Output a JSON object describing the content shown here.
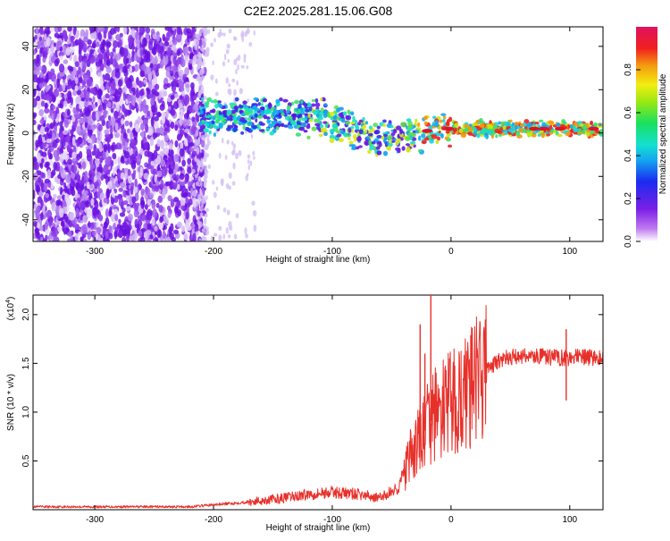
{
  "title": "C2E2.2025.281.15.06.G08",
  "colors": {
    "snr_line": "#e8302a",
    "spectrogram_low": "#8a2be2",
    "spectrogram_high": "#e0112f"
  },
  "chart_data": [
    {
      "type": "heatmap",
      "name": "spectrogram",
      "xlabel": "Height of straight line (km)",
      "ylabel": "Frequency (Hz)",
      "xlim": [
        -352,
        128
      ],
      "ylim": [
        -50,
        49
      ],
      "xticks": [
        -300,
        -200,
        -100,
        0,
        100
      ],
      "xtick_labels": [
        "-300",
        "-200",
        "-100",
        "0",
        "100"
      ],
      "yticks": [
        40,
        20,
        0,
        -20,
        -40
      ],
      "ytick_labels": [
        "40",
        "20",
        "0",
        "-20",
        "-40"
      ],
      "ridge_center_hz": [
        {
          "x": -210,
          "y": 8
        },
        {
          "x": -170,
          "y": 8
        },
        {
          "x": -140,
          "y": 7
        },
        {
          "x": -110,
          "y": 7
        },
        {
          "x": -90,
          "y": 4
        },
        {
          "x": -75,
          "y": 0
        },
        {
          "x": -60,
          "y": -3
        },
        {
          "x": -45,
          "y": -2
        },
        {
          "x": -30,
          "y": 0
        },
        {
          "x": -10,
          "y": 1
        },
        {
          "x": 0,
          "y": 2
        },
        {
          "x": 128,
          "y": 2
        }
      ],
      "colorbar": {
        "label": "Normalized spectral amplitude",
        "range": [
          0,
          1
        ],
        "ticks": [
          0.0,
          0.2,
          0.4,
          0.6,
          0.8
        ],
        "tick_labels": [
          "0.0",
          "0.2",
          "0.4",
          "0.6",
          "0.8"
        ]
      }
    },
    {
      "type": "line",
      "name": "snr",
      "xlabel": "Height of straight line (km)",
      "ylabel": "SNR (10 * v/v)",
      "y_multiplier": "(x10",
      "y_multiplier_exp": "4",
      "xlim": [
        -352,
        128
      ],
      "ylim": [
        0,
        2.2
      ],
      "xticks": [
        -300,
        -200,
        -100,
        0,
        100
      ],
      "xtick_labels": [
        "-300",
        "-200",
        "-100",
        "0",
        "100"
      ],
      "yticks": [
        0.5,
        1.0,
        1.5,
        2.0
      ],
      "ytick_labels": [
        "0.5",
        "1.0",
        "1.5",
        "2.0"
      ],
      "profile": [
        {
          "x": -352,
          "y": 0.03
        },
        {
          "x": -220,
          "y": 0.03
        },
        {
          "x": -200,
          "y": 0.05
        },
        {
          "x": -170,
          "y": 0.08
        },
        {
          "x": -140,
          "y": 0.12
        },
        {
          "x": -120,
          "y": 0.16
        },
        {
          "x": -100,
          "y": 0.18
        },
        {
          "x": -80,
          "y": 0.16
        },
        {
          "x": -60,
          "y": 0.12
        },
        {
          "x": -45,
          "y": 0.22
        },
        {
          "x": -35,
          "y": 0.5
        },
        {
          "x": -25,
          "y": 0.75
        },
        {
          "x": -15,
          "y": 0.95
        },
        {
          "x": -5,
          "y": 1.05
        },
        {
          "x": 10,
          "y": 1.15
        },
        {
          "x": 20,
          "y": 1.3
        },
        {
          "x": 30,
          "y": 1.45
        },
        {
          "x": 45,
          "y": 1.55
        },
        {
          "x": 60,
          "y": 1.58
        },
        {
          "x": 90,
          "y": 1.56
        },
        {
          "x": 128,
          "y": 1.56
        }
      ],
      "spikes": [
        {
          "x": -17,
          "y": 2.2
        },
        {
          "x": -26,
          "y": 1.9
        },
        {
          "x": -22,
          "y": 1.6
        },
        {
          "x": 97,
          "y": 1.85
        },
        {
          "x": 97,
          "y": 1.12
        }
      ]
    }
  ]
}
